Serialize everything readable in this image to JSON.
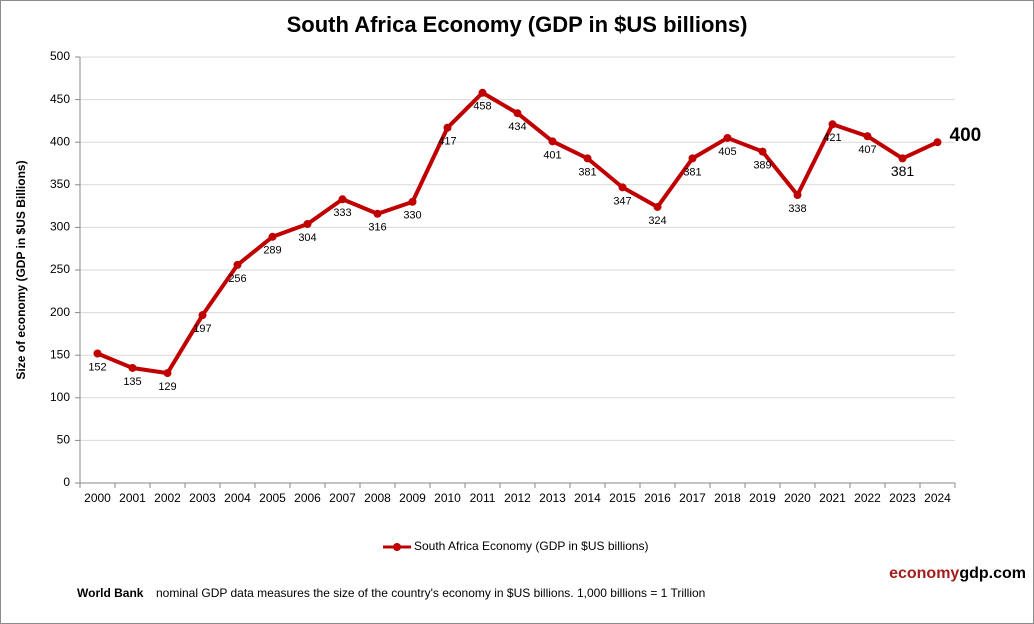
{
  "chart_data": {
    "type": "line",
    "title": "South Africa Economy (GDP in $US billions)",
    "y_label": "Size of economy (GDP in $US Billions)",
    "categories": [
      "2000",
      "2001",
      "2002",
      "2003",
      "2004",
      "2005",
      "2006",
      "2007",
      "2008",
      "2009",
      "2010",
      "2011",
      "2012",
      "2013",
      "2014",
      "2015",
      "2016",
      "2017",
      "2018",
      "2019",
      "2020",
      "2021",
      "2022",
      "2023",
      "2024"
    ],
    "series": [
      {
        "name": "South Africa Economy (GDP in $US billions)",
        "color": "#c00000",
        "values": [
          152,
          135,
          129,
          197,
          256,
          289,
          304,
          333,
          316,
          330,
          417,
          458,
          434,
          401,
          381,
          347,
          324,
          381,
          405,
          389,
          338,
          421,
          407,
          381,
          400
        ]
      }
    ],
    "ylim": [
      0,
      500
    ],
    "yticks": [
      0,
      50,
      100,
      150,
      200,
      250,
      300,
      350,
      400,
      450,
      500
    ],
    "grid": true,
    "legend": "bottom",
    "footnote_bold": "World Bank",
    "footnote": "nominal GDP data  measures the size of the country's economy in $US billions. 1,000 billions = 1 Trillion",
    "brand_1": "economy",
    "brand_2": "gdp.com"
  }
}
